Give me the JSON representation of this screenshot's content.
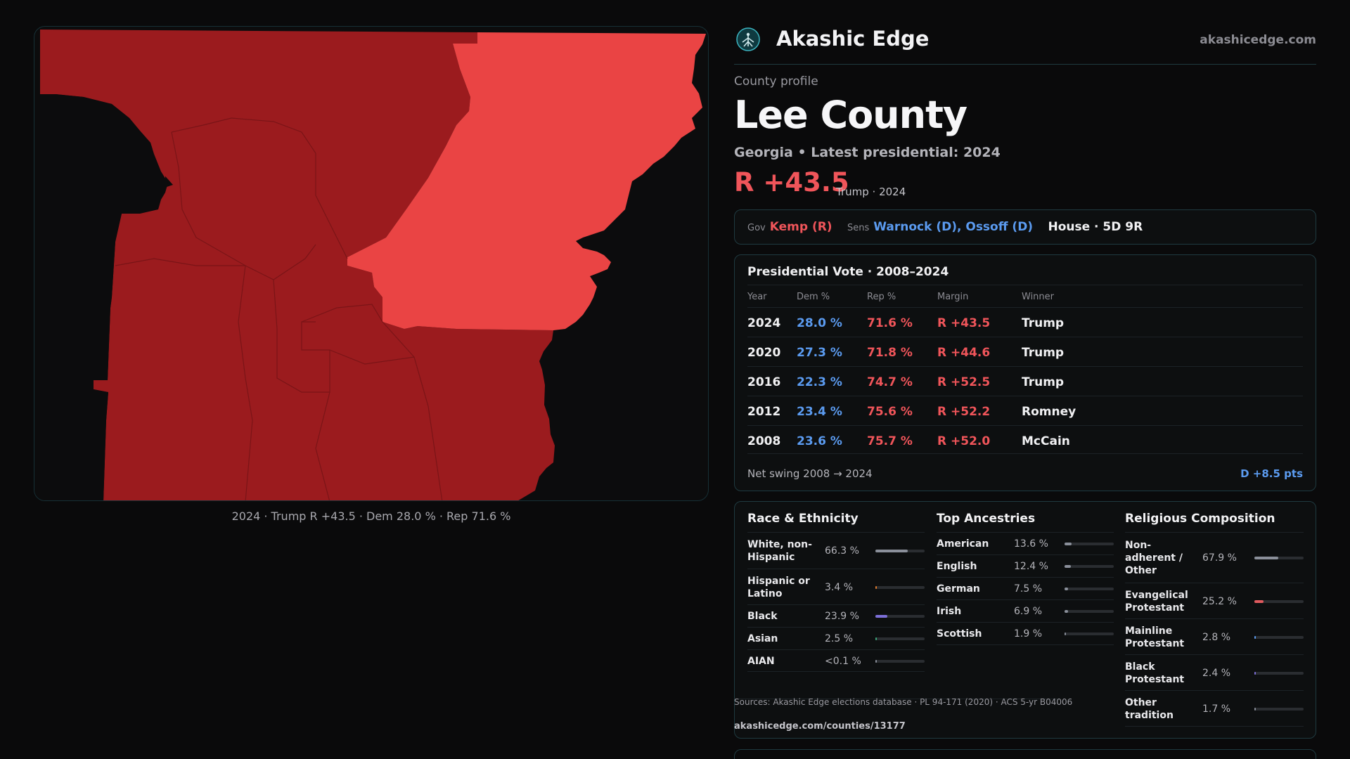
{
  "map": {
    "caption": "2024 · Trump R +43.5 · Dem 28.0 % · Rep 71.6 %",
    "colors": {
      "dark_red": "#9b1b1e",
      "light_red": "#ea4444",
      "background": "#0c0c0d"
    }
  },
  "brand": {
    "name": "Akashic Edge",
    "url": "akashicedge.com",
    "logo_icon": "tree-of-life-icon"
  },
  "profile": {
    "eyebrow": "County profile",
    "title": "Lee County",
    "subtitle": "Georgia • Latest presidential: 2024",
    "margin": "R +43.5",
    "margin_note": "Trump · 2024"
  },
  "officials": {
    "gov_label": "Gov",
    "gov": "Kemp (R)",
    "sens_label": "Sens",
    "sens": "Warnock (D), Ossoff (D)",
    "house": "House · 5D 9R"
  },
  "presidential": {
    "title": "Presidential Vote · 2008–2024",
    "headers": {
      "year": "Year",
      "dem": "Dem %",
      "rep": "Rep %",
      "margin": "Margin",
      "winner": "Winner"
    },
    "rows": [
      {
        "year": "2024",
        "dem": "28.0 %",
        "rep": "71.6 %",
        "margin": "R +43.5",
        "winner": "Trump"
      },
      {
        "year": "2020",
        "dem": "27.3 %",
        "rep": "71.8 %",
        "margin": "R +44.6",
        "winner": "Trump"
      },
      {
        "year": "2016",
        "dem": "22.3 %",
        "rep": "74.7 %",
        "margin": "R +52.5",
        "winner": "Trump"
      },
      {
        "year": "2012",
        "dem": "23.4 %",
        "rep": "75.6 %",
        "margin": "R +52.2",
        "winner": "Romney"
      },
      {
        "year": "2008",
        "dem": "23.6 %",
        "rep": "75.7 %",
        "margin": "R +52.0",
        "winner": "McCain"
      }
    ],
    "swing_label": "Net swing 2008 → 2024",
    "swing_value": "D +8.5 pts"
  },
  "race": {
    "title": "Race & Ethnicity",
    "items": [
      {
        "label": "White, non-Hispanic",
        "pct": "66.3 %",
        "frac": 0.663,
        "color": "#8a8f9a"
      },
      {
        "label": "Hispanic or Latino",
        "pct": "3.4 %",
        "frac": 0.034,
        "color": "#e07a2a"
      },
      {
        "label": "Black",
        "pct": "23.9 %",
        "frac": 0.239,
        "color": "#7c6fd8"
      },
      {
        "label": "Asian",
        "pct": "2.5 %",
        "frac": 0.025,
        "color": "#3aa87a"
      },
      {
        "label": "AIAN",
        "pct": "<0.1 %",
        "frac": 0.001,
        "color": "#8a8f9a"
      }
    ]
  },
  "ancestry": {
    "title": "Top Ancestries",
    "items": [
      {
        "label": "American",
        "pct": "13.6 %",
        "frac": 0.136,
        "color": "#8a8f9a"
      },
      {
        "label": "English",
        "pct": "12.4 %",
        "frac": 0.124,
        "color": "#8a8f9a"
      },
      {
        "label": "German",
        "pct": "7.5 %",
        "frac": 0.075,
        "color": "#8a8f9a"
      },
      {
        "label": "Irish",
        "pct": "6.9 %",
        "frac": 0.069,
        "color": "#8a8f9a"
      },
      {
        "label": "Scottish",
        "pct": "1.9 %",
        "frac": 0.019,
        "color": "#8a8f9a"
      }
    ]
  },
  "religion": {
    "title": "Religious Composition",
    "items": [
      {
        "label": "Non-adherent / Other",
        "pct": "67.9 %",
        "frac": 0.679,
        "color": "#8a8f9a"
      },
      {
        "label": "Evangelical Protestant",
        "pct": "25.2 %",
        "frac": 0.252,
        "color": "#e05a5e"
      },
      {
        "label": "Mainline Protestant",
        "pct": "2.8 %",
        "frac": 0.028,
        "color": "#5b9bf0"
      },
      {
        "label": "Black Protestant",
        "pct": "2.4 %",
        "frac": 0.024,
        "color": "#7c6fd8"
      },
      {
        "label": "Other tradition",
        "pct": "1.7 %",
        "frac": 0.017,
        "color": "#8a8f9a"
      }
    ]
  },
  "sources": {
    "text": "Sources: Akashic Edge elections database · PL 94-171 (2020) · ACS 5-yr B04006",
    "url": "akashicedge.com/counties/13177"
  }
}
